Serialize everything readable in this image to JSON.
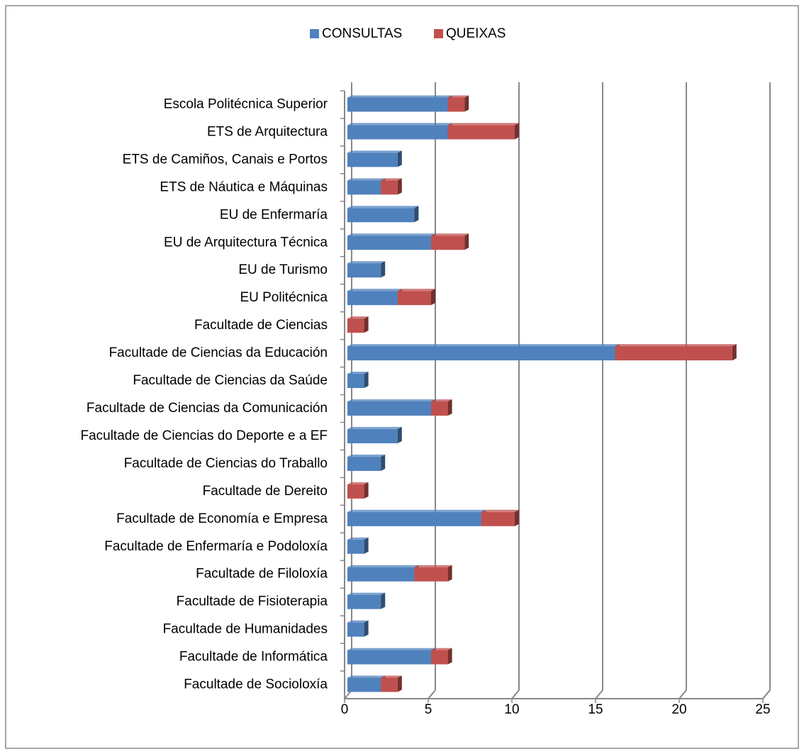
{
  "chart_data": {
    "type": "stacked_bar_horizontal",
    "categories": [
      "Escola Politécnica Superior",
      "ETS de Arquitectura",
      "ETS de Camiños, Canais e Portos",
      "ETS de Náutica e Máquinas",
      "EU de  Enfermaría",
      "EU de Arquitectura Técnica",
      "EU de Turismo",
      "EU Politécnica",
      "Facultade de Ciencias",
      "Facultade de Ciencias da Educación",
      "Facultade de Ciencias da Saúde",
      "Facultade de Ciencias da Comunicación",
      "Facultade de Ciencias do Deporte e a EF",
      "Facultade de Ciencias do Traballo",
      "Facultade de Dereito",
      "Facultade de Economía e Empresa",
      "Facultade de Enfermaría e Podoloxía",
      "Facultade de Filoloxía",
      "Facultade de Fisioterapia",
      "Facultade de Humanidades",
      "Facultade de Informática",
      "Facultade de Socioloxía"
    ],
    "series": [
      {
        "name": "CONSULTAS",
        "color": "#4f81bd",
        "values": [
          6,
          6,
          3,
          2,
          4,
          5,
          2,
          3,
          0,
          16,
          1,
          5,
          3,
          2,
          0,
          8,
          1,
          4,
          2,
          1,
          5,
          2
        ]
      },
      {
        "name": "QUEIXAS",
        "color": "#c0504d",
        "values": [
          1,
          4,
          0,
          1,
          0,
          2,
          0,
          2,
          1,
          7,
          0,
          1,
          0,
          0,
          1,
          2,
          0,
          2,
          0,
          0,
          1,
          1
        ]
      }
    ],
    "xlim": [
      0,
      25
    ],
    "xticks": [
      0,
      5,
      10,
      15,
      20,
      25
    ],
    "grid": true,
    "legend": "top"
  }
}
